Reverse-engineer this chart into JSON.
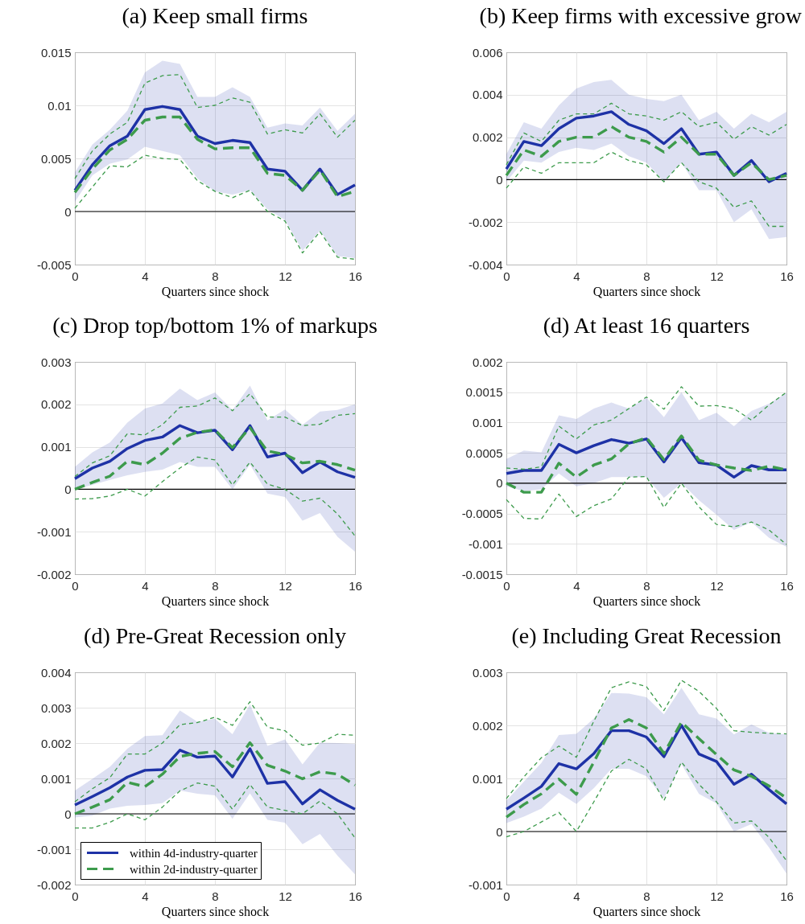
{
  "chart_data": [
    {
      "type": "line",
      "title": "(a) Keep small firms",
      "xlabel": "Quarters since shock",
      "x": [
        0,
        1,
        2,
        3,
        4,
        5,
        6,
        7,
        8,
        9,
        10,
        11,
        12,
        13,
        14,
        15,
        16
      ],
      "xlim": [
        0,
        16
      ],
      "xticks": [
        0,
        4,
        8,
        12,
        16
      ],
      "ylim": [
        -0.005,
        0.015
      ],
      "yticks": [
        -0.005,
        0,
        0.005,
        0.01,
        0.015
      ],
      "grid": true,
      "ref_lines": [
        {
          "axis": "y",
          "value": 0,
          "color": "#000000"
        }
      ],
      "series": [
        {
          "color": "#1e32a6",
          "line_style": "solid",
          "values": [
            0.002,
            0.0044,
            0.0062,
            0.0071,
            0.0096,
            0.0099,
            0.0096,
            0.0071,
            0.0064,
            0.0067,
            0.0065,
            0.004,
            0.0038,
            0.002,
            0.004,
            0.0016,
            0.0025
          ],
          "lower": [
            0.0009,
            0.0034,
            0.0045,
            0.0049,
            0.0061,
            0.0057,
            0.0053,
            0.0031,
            0.0019,
            0.0016,
            0.002,
            0.0002,
            -0.0008,
            -0.0037,
            -0.0018,
            -0.0042,
            -0.0044
          ],
          "upper": [
            0.0037,
            0.0063,
            0.0077,
            0.0095,
            0.0131,
            0.0142,
            0.0139,
            0.0108,
            0.0108,
            0.0117,
            0.0108,
            0.0079,
            0.0083,
            0.0081,
            0.0098,
            0.0076,
            0.0092
          ]
        },
        {
          "color": "#3d9b4c",
          "line_style": "dashed",
          "values": [
            0.0018,
            0.004,
            0.0058,
            0.0068,
            0.0086,
            0.0089,
            0.0089,
            0.0068,
            0.0059,
            0.006,
            0.006,
            0.0036,
            0.0034,
            0.002,
            0.0039,
            0.0014,
            0.0019
          ]
        },
        {
          "color": "#3d9b4c",
          "line_style": "dashed",
          "values": [
            0.0031,
            0.0057,
            0.0073,
            0.0084,
            0.0121,
            0.0128,
            0.0129,
            0.0098,
            0.01,
            0.0107,
            0.0103,
            0.0073,
            0.0077,
            0.0074,
            0.0092,
            0.007,
            0.0086
          ]
        },
        {
          "color": "#3d9b4c",
          "line_style": "dashed",
          "values": [
            0.0003,
            0.0023,
            0.0043,
            0.0042,
            0.0053,
            0.005,
            0.0049,
            0.0029,
            0.0019,
            0.0013,
            0.002,
            0,
            -0.0009,
            -0.0039,
            -0.0019,
            -0.0043,
            -0.0045
          ]
        }
      ]
    },
    {
      "type": "line",
      "title": "(b) Keep firms with excessive grow",
      "xlabel": "Quarters since shock",
      "x": [
        0,
        1,
        2,
        3,
        4,
        5,
        6,
        7,
        8,
        9,
        10,
        11,
        12,
        13,
        14,
        15,
        16
      ],
      "xlim": [
        0,
        16
      ],
      "xticks": [
        0,
        4,
        8,
        12,
        16
      ],
      "ylim": [
        -0.004,
        0.006
      ],
      "yticks": [
        -0.004,
        -0.002,
        0,
        0.002,
        0.004,
        0.006
      ],
      "grid": true,
      "ref_lines": [
        {
          "axis": "y",
          "value": 0,
          "color": "#000000"
        }
      ],
      "series": [
        {
          "color": "#1e32a6",
          "line_style": "solid",
          "values": [
            0.0005,
            0.0018,
            0.0016,
            0.0024,
            0.0029,
            0.003,
            0.0032,
            0.0026,
            0.0023,
            0.0017,
            0.0024,
            0.0012,
            0.0013,
            0.0002,
            0.0009,
            -0.0001,
            0.0003
          ],
          "lower": [
            -0.0001,
            0.0009,
            0.0008,
            0.0013,
            0.0015,
            0.0014,
            0.0017,
            0.0011,
            0.0008,
            -0.0001,
            0.0008,
            -0.0005,
            -0.0005,
            -0.002,
            -0.0014,
            -0.0028,
            -0.0027
          ],
          "upper": [
            0.0012,
            0.0027,
            0.0024,
            0.0035,
            0.0043,
            0.0046,
            0.0047,
            0.004,
            0.0038,
            0.0037,
            0.004,
            0.0028,
            0.0032,
            0.0024,
            0.0031,
            0.0027,
            0.0032
          ]
        },
        {
          "color": "#3d9b4c",
          "line_style": "dashed",
          "values": [
            0.0002,
            0.0014,
            0.0011,
            0.0018,
            0.002,
            0.002,
            0.0025,
            0.002,
            0.0018,
            0.0013,
            0.002,
            0.0012,
            0.0012,
            0.0002,
            0.0008,
            0,
            0.0002
          ]
        },
        {
          "color": "#3d9b4c",
          "line_style": "dashed",
          "values": [
            0.0007,
            0.0022,
            0.0018,
            0.0028,
            0.0031,
            0.0031,
            0.0036,
            0.0031,
            0.003,
            0.0028,
            0.0032,
            0.0025,
            0.0027,
            0.0019,
            0.0025,
            0.0021,
            0.0026
          ]
        },
        {
          "color": "#3d9b4c",
          "line_style": "dashed",
          "values": [
            -0.0004,
            0.0006,
            0.0003,
            0.0008,
            0.0008,
            0.0008,
            0.0013,
            0.0009,
            0.0007,
            -0.0001,
            0.0008,
            -0.0001,
            -0.0004,
            -0.0013,
            -0.001,
            -0.0022,
            -0.0022
          ]
        }
      ]
    },
    {
      "type": "line",
      "title": "(c) Drop top/bottom 1% of markups",
      "xlabel": "Quarters since shock",
      "x": [
        0,
        1,
        2,
        3,
        4,
        5,
        6,
        7,
        8,
        9,
        10,
        11,
        12,
        13,
        14,
        15,
        16
      ],
      "xlim": [
        0,
        16
      ],
      "xticks": [
        0,
        4,
        8,
        12,
        16
      ],
      "ylim": [
        -0.002,
        0.003
      ],
      "yticks": [
        -0.002,
        -0.001,
        0,
        0.001,
        0.002,
        0.003
      ],
      "grid": true,
      "ref_lines": [
        {
          "axis": "y",
          "value": 0,
          "color": "#000000"
        }
      ],
      "series": [
        {
          "color": "#1e32a6",
          "line_style": "solid",
          "values": [
            0.00025,
            0.0005,
            0.00066,
            0.00096,
            0.00115,
            0.00123,
            0.0015,
            0.00133,
            0.00139,
            0.00093,
            0.0015,
            0.00076,
            0.00085,
            0.00039,
            0.00064,
            0.00041,
            0.00028
          ],
          "lower": [
            0,
            0.0001,
            0.00022,
            0.00033,
            0.00041,
            0.00046,
            0.00064,
            0.00053,
            0.00053,
            0,
            0.00058,
            -0.0001,
            -0.00018,
            -0.00074,
            -0.00056,
            -0.00112,
            -0.00147
          ],
          "upper": [
            0.00053,
            0.00087,
            0.0011,
            0.00157,
            0.0019,
            0.00202,
            0.00237,
            0.0021,
            0.00228,
            0.00187,
            0.00244,
            0.00162,
            0.00188,
            0.00152,
            0.00183,
            0.00187,
            0.002
          ]
        },
        {
          "color": "#3d9b4c",
          "line_style": "dashed",
          "values": [
            0,
            0.00016,
            0.00031,
            0.00066,
            0.00058,
            0.00085,
            0.0012,
            0.00134,
            0.0014,
            0.00098,
            0.00145,
            0.0009,
            0.00082,
            0.00062,
            0.00066,
            0.00058,
            0.00045
          ]
        },
        {
          "color": "#3d9b4c",
          "line_style": "dashed",
          "values": [
            0.0003,
            0.00062,
            0.00079,
            0.00131,
            0.00128,
            0.00152,
            0.00193,
            0.00196,
            0.00215,
            0.00185,
            0.00225,
            0.0017,
            0.0017,
            0.0015,
            0.00153,
            0.00174,
            0.00178
          ]
        },
        {
          "color": "#3d9b4c",
          "line_style": "dashed",
          "values": [
            -0.00023,
            -0.00022,
            -0.00016,
            0,
            -0.00016,
            0.00018,
            0.0005,
            0.00076,
            0.00069,
            0.0001,
            0.00064,
            0.00012,
            0,
            -0.00028,
            -0.00021,
            -0.00058,
            -0.0011
          ]
        }
      ]
    },
    {
      "type": "line",
      "title": "(d) At least 16 quarters",
      "xlabel": "Quarters since shock",
      "x": [
        0,
        1,
        2,
        3,
        4,
        5,
        6,
        7,
        8,
        9,
        10,
        11,
        12,
        13,
        14,
        15,
        16
      ],
      "xlim": [
        0,
        16
      ],
      "xticks": [
        0,
        4,
        8,
        12,
        16
      ],
      "ylim": [
        -0.0015,
        0.002
      ],
      "yticks": [
        -0.0015,
        -0.001,
        -0.0005,
        0,
        0.0005,
        0.001,
        0.0015,
        0.002
      ],
      "grid": true,
      "ref_lines": [
        {
          "axis": "y",
          "value": 0,
          "color": "#000000"
        }
      ],
      "series": [
        {
          "color": "#1e32a6",
          "line_style": "solid",
          "values": [
            0.00016,
            0.00021,
            0.00021,
            0.00064,
            0.0005,
            0.00062,
            0.00072,
            0.00066,
            0.00073,
            0.00035,
            0.00075,
            0.00034,
            0.0003,
            0.0001,
            0.00029,
            0.00022,
            0.00022
          ],
          "lower": [
            -5e-05,
            -0.00013,
            -0.0001,
            0.00016,
            -5e-05,
            0,
            0.0001,
            0.0001,
            0.0001,
            -0.00024,
            0,
            -0.00028,
            -0.00052,
            -0.00077,
            -0.00064,
            -0.0009,
            -0.00105
          ],
          "upper": [
            0.0004,
            0.00054,
            0.00051,
            0.00112,
            0.00106,
            0.00123,
            0.00133,
            0.00123,
            0.00141,
            0.00109,
            0.0015,
            0.00104,
            0.00116,
            0.00094,
            0.00119,
            0.00131,
            0.00149
          ]
        },
        {
          "color": "#3d9b4c",
          "line_style": "dashed",
          "values": [
            0,
            -0.00015,
            -0.00015,
            0.00033,
            0.0001,
            0.0003,
            0.0004,
            0.00065,
            0.00075,
            0.00039,
            0.00078,
            0.00038,
            0.0003,
            0.00025,
            0.00021,
            0.00028,
            0.00022
          ]
        },
        {
          "color": "#3d9b4c",
          "line_style": "dashed",
          "values": [
            0.00025,
            0.00023,
            0.00027,
            0.00094,
            0.00073,
            0.00096,
            0.00104,
            0.00123,
            0.00142,
            0.00122,
            0.00159,
            0.00127,
            0.00128,
            0.00123,
            0.00104,
            0.00129,
            0.0015
          ]
        },
        {
          "color": "#3d9b4c",
          "line_style": "dashed",
          "values": [
            -0.00027,
            -0.00058,
            -0.00059,
            -0.00018,
            -0.00055,
            -0.00037,
            -0.00026,
            0.0001,
            0.00011,
            -0.0004,
            0,
            -0.00039,
            -0.00068,
            -0.00072,
            -0.00064,
            -0.00077,
            -0.00101
          ]
        }
      ]
    },
    {
      "type": "line",
      "title": "(d) Pre-Great Recession only",
      "xlabel": "Quarters since shock",
      "x": [
        0,
        1,
        2,
        3,
        4,
        5,
        6,
        7,
        8,
        9,
        10,
        11,
        12,
        13,
        14,
        15,
        16
      ],
      "xlim": [
        0,
        16
      ],
      "xticks": [
        0,
        4,
        8,
        12,
        16
      ],
      "ylim": [
        -0.002,
        0.004
      ],
      "yticks": [
        -0.002,
        -0.001,
        0,
        0.001,
        0.002,
        0.003,
        0.004
      ],
      "grid": true,
      "legend": "bottom left",
      "ref_lines": [
        {
          "axis": "y",
          "value": 0,
          "color": "#000000"
        }
      ],
      "series": [
        {
          "name": "within 4d-industry-quarter",
          "color": "#1e32a6",
          "line_style": "solid",
          "values": [
            0.00025,
            0.00049,
            0.00074,
            0.00104,
            0.00123,
            0.00125,
            0.0018,
            0.0016,
            0.00163,
            0.00104,
            0.00184,
            0.00086,
            0.00091,
            0.00028,
            0.00068,
            0.00038,
            0.00013
          ],
          "lower": [
            -0.0001,
            -5e-05,
            0.00015,
            0.00023,
            0.00025,
            0.0003,
            0.00066,
            0.00057,
            0.00052,
            -0.00014,
            0.00058,
            -0.00017,
            -0.00025,
            -0.00086,
            -0.00057,
            -0.00118,
            -0.00171
          ],
          "upper": [
            0.00066,
            0.00099,
            0.00133,
            0.00184,
            0.0022,
            0.00222,
            0.00292,
            0.0026,
            0.00269,
            0.00225,
            0.00309,
            0.00192,
            0.0021,
            0.0014,
            0.00201,
            0.002,
            0.00197
          ]
        },
        {
          "name": "within 2d-industry-quarter",
          "color": "#3d9b4c",
          "line_style": "dashed",
          "values": [
            0,
            0.00019,
            0.0004,
            0.00089,
            0.00077,
            0.00112,
            0.00162,
            0.00171,
            0.00176,
            0.00133,
            0.00201,
            0.00137,
            0.00121,
            0.00099,
            0.00119,
            0.00112,
            0.00081
          ]
        },
        {
          "color": "#3d9b4c",
          "line_style": "dashed",
          "values": [
            0.00034,
            0.00071,
            0.00102,
            0.00169,
            0.00169,
            0.002,
            0.00252,
            0.00258,
            0.00273,
            0.0025,
            0.00317,
            0.00245,
            0.00235,
            0.00194,
            0.002,
            0.00225,
            0.00222
          ]
        },
        {
          "color": "#3d9b4c",
          "line_style": "dashed",
          "values": [
            -0.0004,
            -0.0004,
            -0.00024,
            0,
            -0.00017,
            0.00019,
            0.00065,
            0.00087,
            0.00078,
            0.00013,
            0.00083,
            0.00019,
            0.0001,
            0,
            0.00036,
            0,
            -0.00068
          ]
        }
      ]
    },
    {
      "type": "line",
      "title": "(e) Including Great Recession",
      "xlabel": "Quarters since shock",
      "x": [
        0,
        1,
        2,
        3,
        4,
        5,
        6,
        7,
        8,
        9,
        10,
        11,
        12,
        13,
        14,
        15,
        16
      ],
      "xlim": [
        0,
        16
      ],
      "xticks": [
        0,
        4,
        8,
        12,
        16
      ],
      "ylim": [
        -0.001,
        0.003
      ],
      "yticks": [
        -0.001,
        0,
        0.001,
        0.002,
        0.003
      ],
      "grid": true,
      "ref_lines": [
        {
          "axis": "y",
          "value": 0,
          "color": "#000000"
        }
      ],
      "series": [
        {
          "color": "#1e32a6",
          "line_style": "solid",
          "values": [
            0.00042,
            0.00063,
            0.00085,
            0.00128,
            0.00118,
            0.00147,
            0.0019,
            0.0019,
            0.00178,
            0.00141,
            0.002,
            0.00146,
            0.00132,
            0.00089,
            0.00108,
            0.00079,
            0.00052
          ],
          "lower": [
            0.00016,
            0.00028,
            0.00043,
            0.00073,
            0.00052,
            0.00082,
            0.00118,
            0.00118,
            0.00104,
            0.00063,
            0.00127,
            0.00071,
            0.00053,
            0,
            0.00014,
            -0.0003,
            -0.00079
          ],
          "upper": [
            0.00058,
            0.00094,
            0.00129,
            0.00182,
            0.00184,
            0.00213,
            0.00261,
            0.0026,
            0.00253,
            0.00221,
            0.00271,
            0.00221,
            0.00213,
            0.00183,
            0.00202,
            0.00186,
            0.00183
          ]
        },
        {
          "color": "#3d9b4c",
          "line_style": "dashed",
          "values": [
            0.00027,
            0.00051,
            0.00071,
            0.00099,
            0.0007,
            0.00131,
            0.00195,
            0.00211,
            0.00195,
            0.00147,
            0.00206,
            0.00175,
            0.00145,
            0.00116,
            0.00104,
            0.00086,
            0.00063
          ]
        },
        {
          "color": "#3d9b4c",
          "line_style": "dashed",
          "values": [
            0.00062,
            0.00103,
            0.00139,
            0.00161,
            0.0014,
            0.00208,
            0.00271,
            0.00282,
            0.00273,
            0.00228,
            0.00285,
            0.00264,
            0.00232,
            0.0019,
            0.00187,
            0.00185,
            0.00184
          ]
        },
        {
          "color": "#3d9b4c",
          "line_style": "dashed",
          "values": [
            -0.0001,
            0,
            0.00018,
            0.00036,
            0,
            0.00056,
            0.00114,
            0.00136,
            0.00118,
            0.00058,
            0.00131,
            0.00089,
            0.00056,
            0.00016,
            0.0002,
            -0.00011,
            -0.00055
          ]
        }
      ]
    }
  ]
}
